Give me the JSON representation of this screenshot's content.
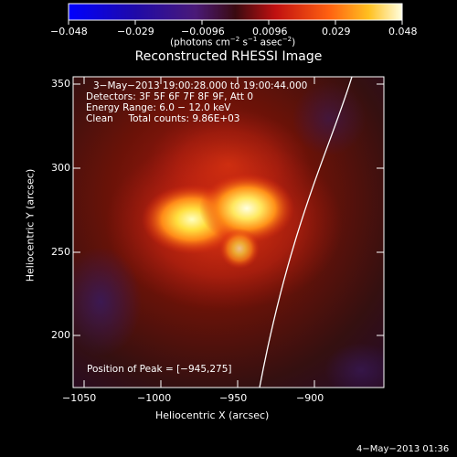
{
  "colorbar": {
    "tick_labels": [
      "−0.048",
      "−0.029",
      "−0.0096",
      "0.0096",
      "0.029",
      "0.048"
    ],
    "units_text": "(photons cm",
    "units_sup1": "−2",
    "units_mid": " s",
    "units_sup2": "−1",
    "units_mid2": " asec",
    "units_sup3": "−2",
    "units_end": ")"
  },
  "title": "Reconstructed RHESSI Image",
  "annotations": {
    "time_range": "3−May−2013 19:00:28.000 to 19:00:44.000",
    "detectors": "Detectors: 3F 5F 6F 7F 8F 9F, Att 0",
    "energy": "Energy Range: 6.0 − 12.0 keV",
    "clean": "Clean     Total counts: 9.86E+03",
    "peak": "Position of Peak = [−945,275]"
  },
  "axes": {
    "xlabel": "Heliocentric X (arcsec)",
    "ylabel": "Heliocentric Y (arcsec)",
    "x_ticks": [
      "−1050",
      "−1000",
      "−950",
      "−900"
    ],
    "y_ticks": [
      "350",
      "300",
      "250",
      "200"
    ]
  },
  "timestamp": "4−May−2013 01:36",
  "colors": {
    "background": "#000000",
    "text": "#ffffff"
  }
}
